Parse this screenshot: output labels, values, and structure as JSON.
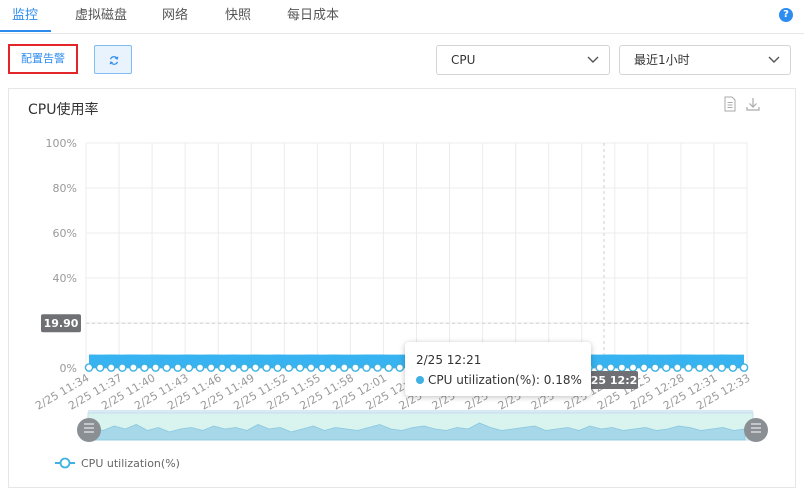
{
  "tabs": [
    {
      "label": "监控",
      "active": true
    },
    {
      "label": "虚拟磁盘",
      "active": false
    },
    {
      "label": "网络",
      "active": false
    },
    {
      "label": "快照",
      "active": false
    },
    {
      "label": "每日成本",
      "active": false
    }
  ],
  "help_icon": "?",
  "toolbar": {
    "alert_button": "配置告警",
    "refresh_icon": "refresh-icon",
    "metric_select": "CPU",
    "range_select": "最近1小时"
  },
  "panel": {
    "title": "CPU使用率",
    "icons": [
      "document-icon",
      "download-icon"
    ]
  },
  "colors": {
    "accent": "#2d8cf0",
    "series": "#3fb1e3",
    "alert_border": "#e1252b"
  },
  "chart_data": {
    "type": "line",
    "ylim": [
      0,
      100
    ],
    "y_ticks": [
      "0%",
      "20%",
      "40%",
      "60%",
      "80%",
      "100%"
    ],
    "x_tick_labels": [
      "2/25 11:34",
      "2/25 11:37",
      "2/25 11:40",
      "2/25 11:43",
      "2/25 11:46",
      "2/25 11:49",
      "2/25 11:52",
      "2/25 11:55",
      "2/25 11:58",
      "2/25 12:01",
      "2/25 12:04",
      "2/25 12:07",
      "2/25 12:10",
      "2/25 12:13",
      "2/25 12:16",
      "2/25 12:19",
      "2/25 12:22",
      "2/25 12:25",
      "2/25 12:28",
      "2/25 12:31",
      "2/25 12:33"
    ],
    "series": [
      {
        "name": "CPU utilization(%)",
        "y": [
          0.2,
          0.18,
          0.21,
          0.19,
          0.22,
          0.18,
          0.2,
          0.17,
          0.19,
          0.2,
          0.18,
          0.21,
          0.19,
          0.2,
          0.18,
          0.22,
          0.19,
          0.2,
          0.17,
          0.19,
          0.21,
          0.18,
          0.2,
          0.19,
          0.18,
          0.2,
          0.22,
          0.19,
          0.18,
          0.2,
          0.21,
          0.19,
          0.18,
          0.2,
          0.19,
          0.23,
          0.2,
          0.18,
          0.19,
          0.2,
          0.21,
          0.18,
          0.19,
          0.2,
          0.18,
          0.21,
          0.19,
          0.2,
          0.18,
          0.19,
          0.2,
          0.18,
          0.19,
          0.21,
          0.2,
          0.18,
          0.19,
          0.2,
          0.18,
          0.19
        ]
      }
    ],
    "crosshair_y_label": "19.90",
    "crosshair_x_label": "2/25 12:21",
    "tooltip": {
      "time": "2/25 12:21",
      "text": "CPU utilization(%): 0.18%"
    },
    "legend": "bottom-left"
  }
}
